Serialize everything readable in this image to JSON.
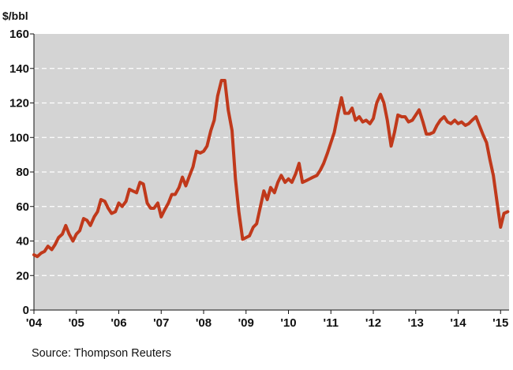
{
  "chart_data": {
    "type": "line",
    "unit_label": "$/bbl",
    "ylim": [
      0,
      160
    ],
    "y_ticks": [
      0,
      20,
      40,
      60,
      80,
      100,
      120,
      140,
      160
    ],
    "x_ticks": [
      {
        "label": "'04",
        "x": 2004
      },
      {
        "label": "'05",
        "x": 2005
      },
      {
        "label": "'06",
        "x": 2006
      },
      {
        "label": "'07",
        "x": 2007
      },
      {
        "label": "'08",
        "x": 2008
      },
      {
        "label": "'09",
        "x": 2009
      },
      {
        "label": "'10",
        "x": 2010
      },
      {
        "label": "'11",
        "x": 2011
      },
      {
        "label": "'12",
        "x": 2012
      },
      {
        "label": "'13",
        "x": 2013
      },
      {
        "label": "'14",
        "x": 2014
      },
      {
        "label": "'15",
        "x": 2015
      }
    ],
    "xlim": [
      2004,
      2015.2
    ],
    "grid": true,
    "colors": {
      "plot_bg": "#d4d4d4",
      "line": "#c0391b",
      "grid": "#ffffff"
    },
    "series": [
      {
        "values": [
          [
            2004.0,
            32
          ],
          [
            2004.08,
            31
          ],
          [
            2004.17,
            33
          ],
          [
            2004.25,
            34
          ],
          [
            2004.33,
            37
          ],
          [
            2004.42,
            35
          ],
          [
            2004.5,
            38
          ],
          [
            2004.58,
            42
          ],
          [
            2004.67,
            44
          ],
          [
            2004.75,
            49
          ],
          [
            2004.83,
            44
          ],
          [
            2004.92,
            40
          ],
          [
            2005.0,
            44
          ],
          [
            2005.08,
            46
          ],
          [
            2005.17,
            53
          ],
          [
            2005.25,
            52
          ],
          [
            2005.33,
            49
          ],
          [
            2005.42,
            54
          ],
          [
            2005.5,
            57
          ],
          [
            2005.58,
            64
          ],
          [
            2005.67,
            63
          ],
          [
            2005.75,
            59
          ],
          [
            2005.83,
            56
          ],
          [
            2005.92,
            57
          ],
          [
            2006.0,
            62
          ],
          [
            2006.08,
            60
          ],
          [
            2006.17,
            63
          ],
          [
            2006.25,
            70
          ],
          [
            2006.33,
            69
          ],
          [
            2006.42,
            68
          ],
          [
            2006.5,
            74
          ],
          [
            2006.58,
            73
          ],
          [
            2006.67,
            62
          ],
          [
            2006.75,
            59
          ],
          [
            2006.83,
            59
          ],
          [
            2006.92,
            62
          ],
          [
            2007.0,
            54
          ],
          [
            2007.08,
            58
          ],
          [
            2007.17,
            62
          ],
          [
            2007.25,
            67
          ],
          [
            2007.33,
            67
          ],
          [
            2007.42,
            71
          ],
          [
            2007.5,
            77
          ],
          [
            2007.58,
            72
          ],
          [
            2007.67,
            78
          ],
          [
            2007.75,
            83
          ],
          [
            2007.83,
            92
          ],
          [
            2007.92,
            91
          ],
          [
            2008.0,
            92
          ],
          [
            2008.08,
            95
          ],
          [
            2008.17,
            104
          ],
          [
            2008.25,
            110
          ],
          [
            2008.33,
            124
          ],
          [
            2008.42,
            133
          ],
          [
            2008.5,
            133
          ],
          [
            2008.58,
            116
          ],
          [
            2008.67,
            104
          ],
          [
            2008.75,
            76
          ],
          [
            2008.83,
            57
          ],
          [
            2008.92,
            41
          ],
          [
            2009.0,
            42
          ],
          [
            2009.08,
            43
          ],
          [
            2009.17,
            48
          ],
          [
            2009.25,
            50
          ],
          [
            2009.33,
            59
          ],
          [
            2009.42,
            69
          ],
          [
            2009.5,
            64
          ],
          [
            2009.58,
            71
          ],
          [
            2009.67,
            68
          ],
          [
            2009.75,
            74
          ],
          [
            2009.83,
            78
          ],
          [
            2009.92,
            74
          ],
          [
            2010.0,
            76
          ],
          [
            2010.08,
            74
          ],
          [
            2010.17,
            79
          ],
          [
            2010.25,
            85
          ],
          [
            2010.33,
            74
          ],
          [
            2010.42,
            75
          ],
          [
            2010.5,
            76
          ],
          [
            2010.58,
            77
          ],
          [
            2010.67,
            78
          ],
          [
            2010.75,
            81
          ],
          [
            2010.83,
            85
          ],
          [
            2010.92,
            91
          ],
          [
            2011.0,
            97
          ],
          [
            2011.08,
            103
          ],
          [
            2011.17,
            114
          ],
          [
            2011.25,
            123
          ],
          [
            2011.33,
            114
          ],
          [
            2011.42,
            114
          ],
          [
            2011.5,
            117
          ],
          [
            2011.58,
            110
          ],
          [
            2011.67,
            112
          ],
          [
            2011.75,
            109
          ],
          [
            2011.83,
            110
          ],
          [
            2011.92,
            108
          ],
          [
            2012.0,
            111
          ],
          [
            2012.08,
            120
          ],
          [
            2012.17,
            125
          ],
          [
            2012.25,
            120
          ],
          [
            2012.33,
            110
          ],
          [
            2012.42,
            95
          ],
          [
            2012.5,
            103
          ],
          [
            2012.58,
            113
          ],
          [
            2012.67,
            112
          ],
          [
            2012.75,
            112
          ],
          [
            2012.83,
            109
          ],
          [
            2012.92,
            110
          ],
          [
            2013.0,
            113
          ],
          [
            2013.08,
            116
          ],
          [
            2013.17,
            109
          ],
          [
            2013.25,
            102
          ],
          [
            2013.33,
            102
          ],
          [
            2013.42,
            103
          ],
          [
            2013.5,
            107
          ],
          [
            2013.58,
            110
          ],
          [
            2013.67,
            112
          ],
          [
            2013.75,
            109
          ],
          [
            2013.83,
            108
          ],
          [
            2013.92,
            110
          ],
          [
            2014.0,
            108
          ],
          [
            2014.08,
            109
          ],
          [
            2014.17,
            107
          ],
          [
            2014.25,
            108
          ],
          [
            2014.33,
            110
          ],
          [
            2014.42,
            112
          ],
          [
            2014.5,
            107
          ],
          [
            2014.58,
            102
          ],
          [
            2014.67,
            97
          ],
          [
            2014.75,
            87
          ],
          [
            2014.83,
            78
          ],
          [
            2014.92,
            62
          ],
          [
            2015.0,
            48
          ],
          [
            2015.08,
            56
          ],
          [
            2015.17,
            57
          ]
        ]
      }
    ]
  },
  "source_text": "Source: Thompson Reuters"
}
